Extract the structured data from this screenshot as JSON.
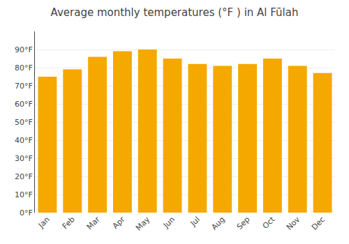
{
  "chart_data": {
    "type": "bar",
    "title": "Average monthly temperatures (°F ) in Al Fūlah",
    "categories": [
      "Jan",
      "Feb",
      "Mar",
      "Apr",
      "May",
      "Jun",
      "Jul",
      "Aug",
      "Sep",
      "Oct",
      "Nov",
      "Dec"
    ],
    "values": [
      75,
      79,
      86,
      89,
      90,
      85,
      82,
      81,
      82,
      85,
      81,
      77
    ],
    "color": "#F5A800",
    "ylim": [
      0,
      100
    ],
    "yticks": [
      {
        "value": 0,
        "label": "0°F"
      },
      {
        "value": 10,
        "label": "10°F"
      },
      {
        "value": 20,
        "label": "20°F"
      },
      {
        "value": 30,
        "label": "30°F"
      },
      {
        "value": 40,
        "label": "40°F"
      },
      {
        "value": 50,
        "label": "50°F"
      },
      {
        "value": 60,
        "label": "60°F"
      },
      {
        "value": 70,
        "label": "70°F"
      },
      {
        "value": 80,
        "label": "80°F"
      },
      {
        "value": 90,
        "label": "90°F"
      }
    ],
    "grid": true
  }
}
